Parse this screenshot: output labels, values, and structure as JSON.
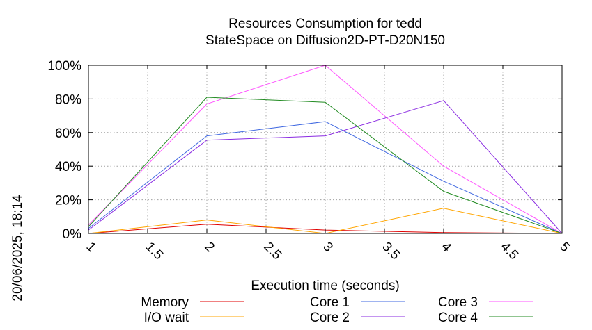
{
  "chart_data": {
    "type": "line",
    "title": "Resources Consumption for tedd",
    "subtitle": "StateSpace on Diffusion2D-PT-D20N150",
    "xlabel": "Execution time (seconds)",
    "ylabel": "",
    "timestamp": "20/06/2025, 18:14",
    "xlim": [
      1,
      5
    ],
    "ylim": [
      0,
      100
    ],
    "x_ticks": [
      "1",
      "1.5",
      "2",
      "2.5",
      "3",
      "3.5",
      "4",
      "4.5",
      "5"
    ],
    "y_ticks": [
      "0%",
      "20%",
      "40%",
      "60%",
      "80%",
      "100%"
    ],
    "grid": true,
    "legend_position": "bottom",
    "x": [
      1,
      2,
      3,
      4,
      5
    ],
    "series": [
      {
        "name": "Memory",
        "color": "#e00000",
        "values": [
          0,
          5.5,
          2,
          0.5,
          0
        ]
      },
      {
        "name": "I/O wait",
        "color": "#ffa500",
        "values": [
          0,
          8,
          0,
          15,
          0
        ]
      },
      {
        "name": "Core 1",
        "color": "#4169e1",
        "values": [
          3,
          58,
          66.5,
          31,
          0
        ]
      },
      {
        "name": "Core 2",
        "color": "#8a2be2",
        "values": [
          2,
          55.5,
          58,
          79,
          0
        ]
      },
      {
        "name": "Core 3",
        "color": "#ff55ff",
        "values": [
          5,
          77,
          100,
          40,
          0
        ]
      },
      {
        "name": "Core 4",
        "color": "#228b22",
        "values": [
          4,
          81,
          78,
          25,
          0
        ]
      }
    ]
  }
}
